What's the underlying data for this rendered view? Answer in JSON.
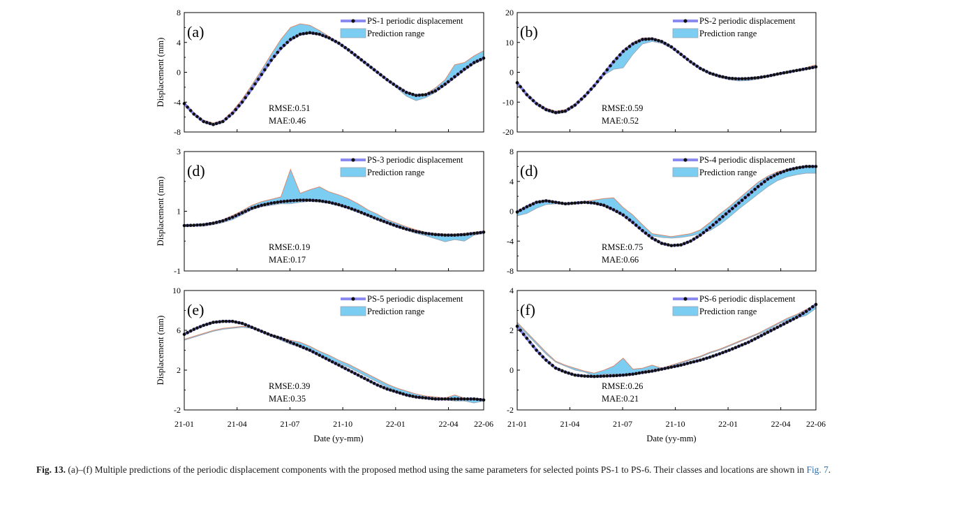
{
  "figure": {
    "x_axis_label": "Date (yy-mm)",
    "y_axis_label": "Displacement (mm)",
    "x_ticks": [
      "21-01",
      "21-04",
      "21-07",
      "21-10",
      "22-01",
      "22-04",
      "22-06"
    ],
    "colors": {
      "series": "#8a8af0",
      "marker": "#111111",
      "band": "#7ccdf2",
      "band_edge": "#e08060"
    }
  },
  "caption": {
    "label": "Fig. 13.",
    "text": "(a)–(f) Multiple predictions of the periodic displacement components with the proposed method using the same parameters for selected points PS-1 to PS-6. Their classes and locations are shown in",
    "link": "Fig. 7",
    "end": "."
  },
  "chart_data": [
    {
      "type": "line",
      "panel": "(a)",
      "legend": [
        "PS-1 periodic displacement",
        "Prediction range"
      ],
      "ylim": [
        -8,
        8
      ],
      "yticks": [
        -8,
        -4,
        0,
        4,
        8
      ],
      "rmse": "RMSE:0.51",
      "mae": "MAE:0.46",
      "series": [
        {
          "name": "PS-1 periodic displacement",
          "values": [
            -4.2,
            -5.6,
            -6.6,
            -7.0,
            -6.6,
            -5.5,
            -4.0,
            -2.2,
            -0.3,
            1.6,
            3.2,
            4.4,
            5.1,
            5.3,
            5.1,
            4.6,
            3.9,
            3.0,
            2.0,
            1.0,
            0.0,
            -1.0,
            -1.9,
            -2.7,
            -3.1,
            -3.0,
            -2.5,
            -1.6,
            -0.6,
            0.4,
            1.3,
            1.9
          ]
        }
      ],
      "band": {
        "name": "Prediction range",
        "upper": [
          -4.0,
          -5.4,
          -6.4,
          -6.8,
          -6.4,
          -5.2,
          -3.6,
          -1.7,
          0.3,
          2.4,
          4.4,
          6.0,
          6.5,
          6.3,
          5.6,
          4.8,
          4.0,
          3.1,
          2.1,
          1.1,
          0.1,
          -0.9,
          -1.8,
          -2.6,
          -3.0,
          -2.9,
          -2.1,
          -1.0,
          1.0,
          1.3,
          2.2,
          2.9
        ],
        "lower": [
          -4.3,
          -5.7,
          -6.7,
          -7.1,
          -6.7,
          -5.6,
          -4.1,
          -2.3,
          -0.4,
          1.5,
          3.0,
          4.2,
          5.0,
          5.2,
          5.0,
          4.5,
          3.8,
          2.9,
          1.9,
          0.9,
          -0.1,
          -1.1,
          -2.1,
          -3.2,
          -3.8,
          -3.4,
          -2.7,
          -1.8,
          -0.8,
          0.2,
          1.1,
          1.7
        ]
      }
    },
    {
      "type": "line",
      "panel": "(b)",
      "legend": [
        "PS-2 periodic displacement",
        "Prediction range"
      ],
      "ylim": [
        -20,
        20
      ],
      "yticks": [
        -20,
        -10,
        0,
        10,
        20
      ],
      "rmse": "RMSE:0.59",
      "mae": "MAE:0.52",
      "series": [
        {
          "name": "PS-2 periodic displacement",
          "values": [
            -3.5,
            -7.5,
            -10.5,
            -12.5,
            -13.5,
            -13.0,
            -11.0,
            -8.0,
            -4.5,
            -0.5,
            3.5,
            7.0,
            9.5,
            11.0,
            11.2,
            10.3,
            8.5,
            6.0,
            3.5,
            1.3,
            -0.3,
            -1.3,
            -2.0,
            -2.2,
            -2.1,
            -1.8,
            -1.3,
            -0.6,
            0.0,
            0.6,
            1.2,
            1.8
          ]
        }
      ],
      "band": {
        "name": "Prediction range",
        "upper": [
          -3.0,
          -7.0,
          -10.0,
          -12.0,
          -13.0,
          -12.5,
          -10.5,
          -7.5,
          -4.0,
          0.0,
          3.8,
          7.5,
          10.0,
          11.5,
          11.6,
          10.7,
          8.9,
          6.4,
          3.9,
          1.6,
          0.0,
          -1.0,
          -1.7,
          -1.9,
          -1.8,
          -1.5,
          -1.0,
          -0.3,
          0.3,
          0.9,
          1.6,
          2.5
        ],
        "lower": [
          -4.0,
          -8.0,
          -11.0,
          -13.0,
          -14.0,
          -13.5,
          -11.5,
          -8.5,
          -5.0,
          -1.0,
          1.0,
          1.5,
          6.0,
          9.5,
          10.3,
          9.7,
          8.0,
          5.6,
          3.1,
          0.9,
          -0.7,
          -1.8,
          -2.5,
          -2.9,
          -2.8,
          -2.3,
          -1.6,
          -0.9,
          -0.3,
          0.3,
          0.9,
          1.4
        ]
      }
    },
    {
      "type": "line",
      "panel": "(d)",
      "legend": [
        "PS-3 periodic displacement",
        "Prediction range"
      ],
      "ylim": [
        -1,
        3
      ],
      "yticks": [
        -1,
        1,
        3
      ],
      "rmse": "RMSE:0.19",
      "mae": "MAE:0.17",
      "series": [
        {
          "name": "PS-3 periodic displacement",
          "values": [
            0.52,
            0.53,
            0.55,
            0.6,
            0.68,
            0.8,
            0.95,
            1.1,
            1.2,
            1.27,
            1.32,
            1.35,
            1.37,
            1.37,
            1.35,
            1.3,
            1.22,
            1.12,
            1.0,
            0.87,
            0.74,
            0.62,
            0.5,
            0.4,
            0.32,
            0.26,
            0.22,
            0.2,
            0.2,
            0.22,
            0.26,
            0.3
          ]
        }
      ],
      "band": {
        "name": "Prediction range",
        "upper": [
          0.54,
          0.55,
          0.57,
          0.63,
          0.72,
          0.86,
          1.02,
          1.2,
          1.32,
          1.4,
          1.48,
          2.4,
          1.6,
          1.72,
          1.82,
          1.65,
          1.55,
          1.42,
          1.25,
          1.05,
          0.9,
          0.72,
          0.6,
          0.48,
          0.38,
          0.3,
          0.26,
          0.24,
          0.24,
          0.26,
          0.3,
          0.34
        ],
        "lower": [
          0.5,
          0.5,
          0.5,
          0.55,
          0.62,
          0.72,
          0.88,
          1.05,
          1.15,
          1.2,
          1.25,
          1.25,
          1.3,
          1.33,
          1.31,
          1.26,
          1.18,
          1.08,
          0.96,
          0.83,
          0.7,
          0.58,
          0.46,
          0.36,
          0.26,
          0.18,
          0.08,
          -0.02,
          0.05,
          0.0,
          0.2,
          0.25
        ]
      }
    },
    {
      "type": "line",
      "panel": "(d)",
      "legend": [
        "PS-4 periodic displacement",
        "Prediction range"
      ],
      "ylim": [
        -8,
        8
      ],
      "yticks": [
        -8,
        -4,
        0,
        4,
        8
      ],
      "rmse": "RMSE:0.75",
      "mae": "MAE:0.66",
      "series": [
        {
          "name": "PS-4 periodic displacement",
          "values": [
            -0.1,
            0.6,
            1.2,
            1.4,
            1.2,
            1.0,
            1.1,
            1.2,
            1.1,
            0.8,
            0.2,
            -0.5,
            -1.5,
            -2.6,
            -3.6,
            -4.3,
            -4.6,
            -4.5,
            -4.0,
            -3.2,
            -2.2,
            -1.1,
            0.0,
            1.1,
            2.2,
            3.3,
            4.3,
            5.0,
            5.5,
            5.8,
            6.0,
            6.0
          ]
        }
      ],
      "band": {
        "name": "Prediction range",
        "upper": [
          0.0,
          0.7,
          1.3,
          1.5,
          1.3,
          1.1,
          1.2,
          1.3,
          1.5,
          1.7,
          1.8,
          0.5,
          -0.5,
          -1.8,
          -3.0,
          -3.2,
          -3.4,
          -3.2,
          -3.0,
          -2.5,
          -1.5,
          -0.4,
          0.6,
          1.7,
          2.8,
          3.9,
          4.7,
          5.3,
          5.6,
          5.8,
          5.9,
          6.0
        ],
        "lower": [
          -0.6,
          -0.3,
          0.4,
          0.9,
          1.0,
          0.9,
          1.0,
          1.1,
          1.0,
          0.7,
          0.1,
          -0.6,
          -1.6,
          -2.7,
          -3.3,
          -3.5,
          -3.6,
          -3.5,
          -3.3,
          -3.0,
          -2.6,
          -1.8,
          -0.8,
          0.3,
          1.3,
          2.3,
          3.3,
          4.1,
          4.6,
          4.9,
          5.1,
          5.1
        ]
      }
    },
    {
      "type": "line",
      "panel": "(e)",
      "legend": [
        "PS-5 periodic displacement",
        "Prediction range"
      ],
      "ylim": [
        -2,
        10
      ],
      "yticks": [
        -2,
        2,
        6,
        10
      ],
      "rmse": "RMSE:0.39",
      "mae": "MAE:0.35",
      "series": [
        {
          "name": "PS-5 periodic displacement",
          "values": [
            5.6,
            6.1,
            6.5,
            6.8,
            6.9,
            6.9,
            6.7,
            6.3,
            5.9,
            5.5,
            5.2,
            4.8,
            4.4,
            4.0,
            3.5,
            3.0,
            2.5,
            2.0,
            1.5,
            1.0,
            0.5,
            0.1,
            -0.2,
            -0.5,
            -0.7,
            -0.8,
            -0.9,
            -0.9,
            -0.9,
            -0.9,
            -0.9,
            -1.0
          ]
        }
      ],
      "band": {
        "name": "Prediction range",
        "upper": [
          5.1,
          5.4,
          5.7,
          6.0,
          6.2,
          6.3,
          6.4,
          6.3,
          6.0,
          5.6,
          5.3,
          5.0,
          4.8,
          4.4,
          3.9,
          3.5,
          3.0,
          2.6,
          2.1,
          1.6,
          1.1,
          0.6,
          0.2,
          -0.1,
          -0.4,
          -0.6,
          -0.7,
          -0.8,
          -0.5,
          -0.8,
          -0.8,
          -0.9
        ],
        "lower": [
          5.0,
          5.3,
          5.6,
          5.9,
          6.1,
          6.2,
          6.3,
          6.2,
          5.8,
          5.4,
          5.0,
          4.6,
          4.3,
          3.9,
          3.5,
          3.1,
          2.7,
          2.3,
          1.8,
          1.3,
          0.8,
          0.3,
          -0.1,
          -0.4,
          -0.6,
          -0.8,
          -0.9,
          -1.0,
          -1.1,
          -1.1,
          -1.3,
          -1.1
        ]
      }
    },
    {
      "type": "line",
      "panel": "(f)",
      "legend": [
        "PS-6 periodic displacement",
        "Prediction range"
      ],
      "ylim": [
        -2,
        4
      ],
      "yticks": [
        -2,
        0,
        2,
        4
      ],
      "rmse": "RMSE:0.26",
      "mae": "MAE:0.21",
      "series": [
        {
          "name": "PS-6 periodic displacement",
          "values": [
            2.2,
            1.6,
            1.0,
            0.5,
            0.1,
            -0.1,
            -0.25,
            -0.3,
            -0.32,
            -0.3,
            -0.28,
            -0.25,
            -0.2,
            -0.12,
            -0.05,
            0.05,
            0.15,
            0.25,
            0.38,
            0.5,
            0.65,
            0.82,
            1.0,
            1.2,
            1.4,
            1.65,
            1.9,
            2.15,
            2.4,
            2.65,
            2.95,
            3.3
          ]
        }
      ],
      "band": {
        "name": "Prediction range",
        "upper": [
          2.4,
          1.9,
          1.4,
          0.9,
          0.45,
          0.25,
          0.1,
          -0.05,
          -0.15,
          0.0,
          0.2,
          0.6,
          0.05,
          0.1,
          0.25,
          0.1,
          0.25,
          0.4,
          0.55,
          0.7,
          0.9,
          1.05,
          1.25,
          1.45,
          1.65,
          1.85,
          2.1,
          2.35,
          2.6,
          2.8,
          3.05,
          3.3
        ],
        "lower": [
          2.3,
          1.8,
          1.3,
          0.8,
          0.4,
          0.2,
          0.0,
          -0.1,
          -0.3,
          -0.2,
          -0.2,
          -0.2,
          -0.15,
          -0.05,
          0.05,
          0.1,
          0.2,
          0.35,
          0.5,
          0.65,
          0.85,
          1.0,
          1.2,
          1.4,
          1.6,
          1.8,
          2.0,
          2.3,
          2.5,
          2.6,
          2.75,
          3.1
        ]
      }
    }
  ]
}
